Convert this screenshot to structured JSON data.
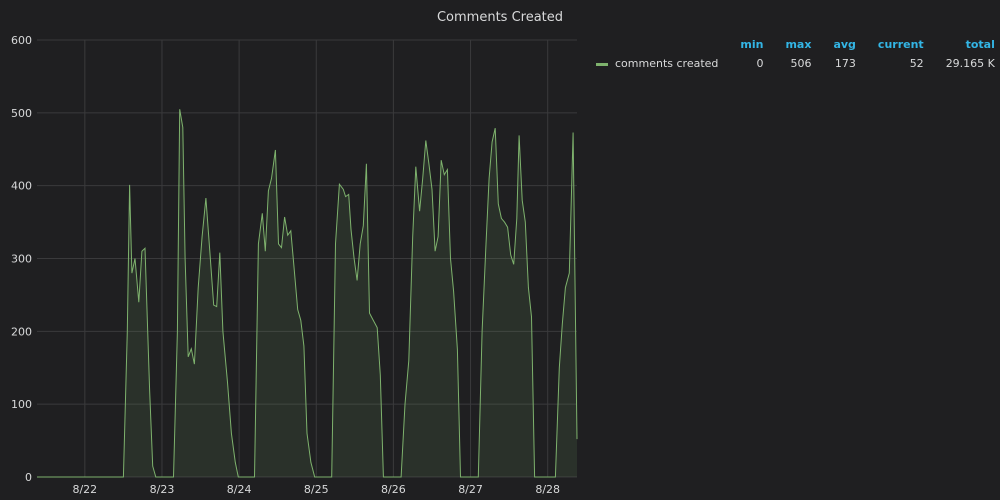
{
  "panel": {
    "title": "Comments Created"
  },
  "colors": {
    "series": "#7eb26d",
    "grid": "#3a3a3c",
    "text": "#d8d9da",
    "legend_header": "#33b5e5",
    "background": "#1f1f21"
  },
  "legend": {
    "headers": [
      "min",
      "max",
      "avg",
      "current",
      "total"
    ],
    "series_name": "comments created",
    "stats": [
      "0",
      "506",
      "173",
      "52",
      "29.165 K"
    ]
  },
  "chart_data": {
    "type": "area",
    "title": "Comments Created",
    "x_ticks": [
      "8/22",
      "8/23",
      "8/24",
      "8/25",
      "8/26",
      "8/27",
      "8/28"
    ],
    "y_ticks": [
      "0",
      "100",
      "200",
      "300",
      "400",
      "500",
      "600"
    ],
    "ylim": [
      0,
      600
    ],
    "xlim": [
      -0.62,
      6.38
    ],
    "grid": true,
    "legend_position": "right",
    "series": [
      {
        "name": "comments created",
        "points": [
          [
            -0.62,
            0
          ],
          [
            0.5,
            0
          ],
          [
            0.55,
            200
          ],
          [
            0.58,
            401
          ],
          [
            0.61,
            280
          ],
          [
            0.65,
            300
          ],
          [
            0.7,
            240
          ],
          [
            0.74,
            310
          ],
          [
            0.78,
            314
          ],
          [
            0.84,
            120
          ],
          [
            0.88,
            15
          ],
          [
            0.92,
            0
          ],
          [
            1.15,
            0
          ],
          [
            1.2,
            200
          ],
          [
            1.23,
            505
          ],
          [
            1.27,
            480
          ],
          [
            1.3,
            300
          ],
          [
            1.34,
            165
          ],
          [
            1.38,
            176
          ],
          [
            1.42,
            155
          ],
          [
            1.47,
            260
          ],
          [
            1.52,
            330
          ],
          [
            1.57,
            383
          ],
          [
            1.62,
            310
          ],
          [
            1.67,
            236
          ],
          [
            1.71,
            234
          ],
          [
            1.75,
            308
          ],
          [
            1.79,
            200
          ],
          [
            1.85,
            130
          ],
          [
            1.9,
            60
          ],
          [
            1.95,
            20
          ],
          [
            1.99,
            0
          ],
          [
            2.2,
            0
          ],
          [
            2.25,
            320
          ],
          [
            2.3,
            362
          ],
          [
            2.34,
            310
          ],
          [
            2.38,
            393
          ],
          [
            2.42,
            410
          ],
          [
            2.47,
            449
          ],
          [
            2.51,
            320
          ],
          [
            2.55,
            315
          ],
          [
            2.59,
            357
          ],
          [
            2.63,
            332
          ],
          [
            2.67,
            338
          ],
          [
            2.71,
            290
          ],
          [
            2.76,
            230
          ],
          [
            2.8,
            215
          ],
          [
            2.84,
            180
          ],
          [
            2.88,
            60
          ],
          [
            2.93,
            20
          ],
          [
            2.98,
            0
          ],
          [
            3.2,
            0
          ],
          [
            3.25,
            320
          ],
          [
            3.3,
            402
          ],
          [
            3.35,
            395
          ],
          [
            3.38,
            385
          ],
          [
            3.42,
            388
          ],
          [
            3.45,
            340
          ],
          [
            3.49,
            300
          ],
          [
            3.53,
            270
          ],
          [
            3.57,
            320
          ],
          [
            3.61,
            345
          ],
          [
            3.65,
            430
          ],
          [
            3.69,
            225
          ],
          [
            3.74,
            215
          ],
          [
            3.79,
            205
          ],
          [
            3.83,
            140
          ],
          [
            3.87,
            0
          ],
          [
            4.1,
            0
          ],
          [
            4.15,
            100
          ],
          [
            4.2,
            160
          ],
          [
            4.25,
            330
          ],
          [
            4.29,
            426
          ],
          [
            4.34,
            365
          ],
          [
            4.38,
            410
          ],
          [
            4.42,
            462
          ],
          [
            4.46,
            430
          ],
          [
            4.5,
            395
          ],
          [
            4.54,
            310
          ],
          [
            4.58,
            330
          ],
          [
            4.62,
            435
          ],
          [
            4.66,
            415
          ],
          [
            4.7,
            422
          ],
          [
            4.74,
            300
          ],
          [
            4.78,
            255
          ],
          [
            4.83,
            175
          ],
          [
            4.87,
            0
          ],
          [
            5.1,
            0
          ],
          [
            5.15,
            200
          ],
          [
            5.2,
            320
          ],
          [
            5.24,
            410
          ],
          [
            5.28,
            460
          ],
          [
            5.32,
            479
          ],
          [
            5.36,
            375
          ],
          [
            5.4,
            355
          ],
          [
            5.44,
            350
          ],
          [
            5.48,
            343
          ],
          [
            5.52,
            305
          ],
          [
            5.56,
            292
          ],
          [
            5.6,
            355
          ],
          [
            5.63,
            469
          ],
          [
            5.67,
            380
          ],
          [
            5.71,
            350
          ],
          [
            5.75,
            260
          ],
          [
            5.79,
            220
          ],
          [
            5.83,
            0
          ],
          [
            6.1,
            0
          ],
          [
            6.15,
            150
          ],
          [
            6.19,
            210
          ],
          [
            6.23,
            260
          ],
          [
            6.28,
            280
          ],
          [
            6.33,
            473
          ],
          [
            6.38,
            52
          ]
        ]
      }
    ]
  }
}
